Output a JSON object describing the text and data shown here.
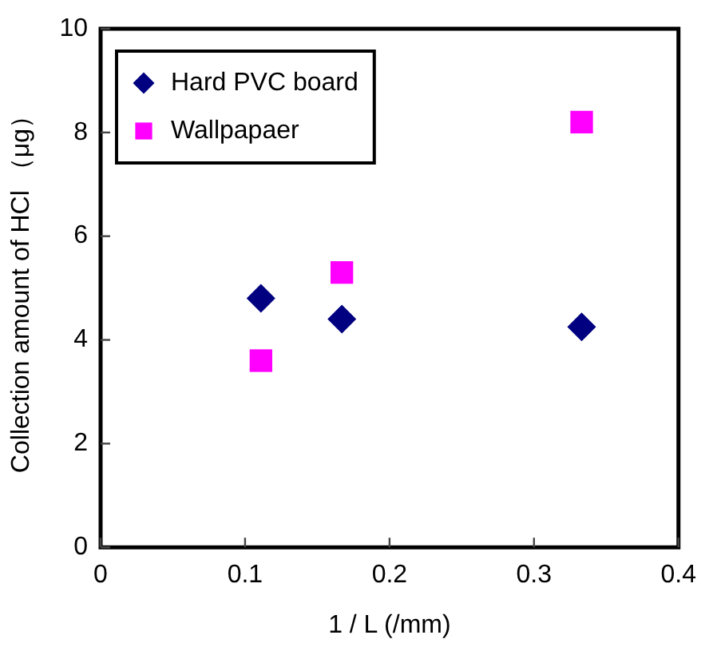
{
  "chart_data": {
    "type": "scatter",
    "xlabel": "1 / L (/mm)",
    "ylabel": "Collection amount of HCl （μg）",
    "x": [
      0.111,
      0.167,
      0.333
    ],
    "series": [
      {
        "name": "Hard PVC board",
        "color": "#000080",
        "marker": "diamond",
        "values": [
          4.8,
          4.4,
          4.25
        ]
      },
      {
        "name": "Wallpapaer",
        "color": "#ff00ff",
        "marker": "square",
        "values": [
          3.6,
          5.3,
          8.2
        ]
      }
    ],
    "xlim": [
      0,
      0.4
    ],
    "xticks": [
      0,
      0.1,
      0.2,
      0.3,
      0.4
    ],
    "ylim": [
      0,
      10
    ],
    "yticks": [
      0,
      2,
      4,
      6,
      8,
      10
    ],
    "grid": false,
    "legend": "top left"
  }
}
